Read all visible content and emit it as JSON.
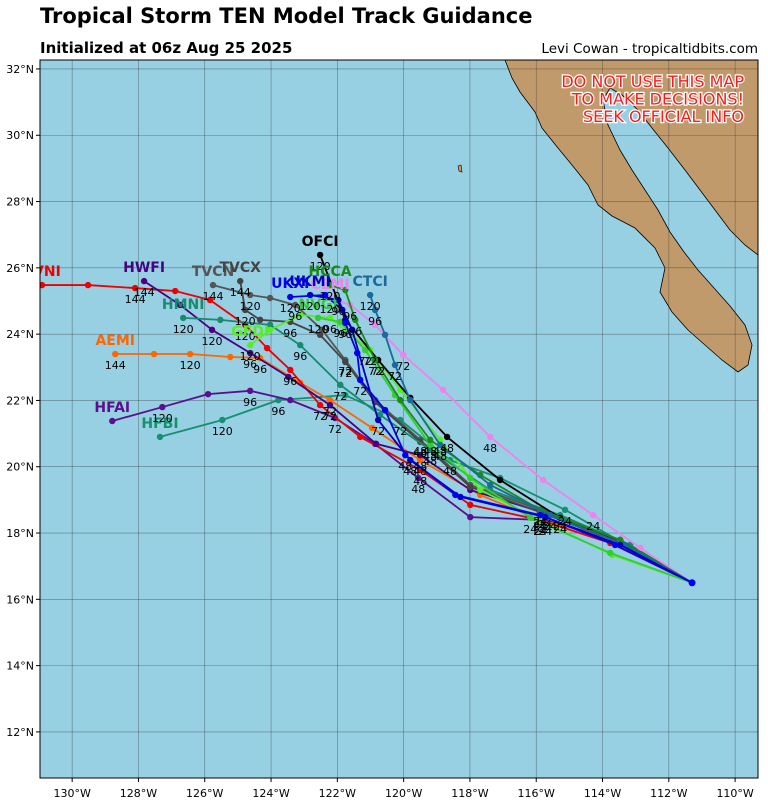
{
  "header": {
    "title": "Tropical Storm TEN Model Track Guidance",
    "subtitle": "Initialized at 06z Aug 25 2025",
    "credit": "Levi Cowan - tropicaltidbits.com"
  },
  "warning": [
    "DO NOT USE THIS MAP",
    "TO MAKE DECISIONS!",
    "SEEK OFFICIAL INFO"
  ],
  "map": {
    "xlim": [
      -130.97,
      -109.31
    ],
    "ylim": [
      10.61,
      32.27
    ],
    "grid": true,
    "xticks": [
      {
        "value": -130,
        "label": "130°W"
      },
      {
        "value": -128,
        "label": "128°W"
      },
      {
        "value": -126,
        "label": "126°W"
      },
      {
        "value": -124,
        "label": "124°W"
      },
      {
        "value": -122,
        "label": "122°W"
      },
      {
        "value": -120,
        "label": "120°W"
      },
      {
        "value": -118,
        "label": "118°W"
      },
      {
        "value": -116,
        "label": "116°W"
      },
      {
        "value": -114,
        "label": "114°W"
      },
      {
        "value": -112,
        "label": "112°W"
      },
      {
        "value": -110,
        "label": "110°W"
      }
    ],
    "yticks": [
      {
        "value": 12,
        "label": "12°N"
      },
      {
        "value": 14,
        "label": "14°N"
      },
      {
        "value": 16,
        "label": "16°N"
      },
      {
        "value": 18,
        "label": "18°N"
      },
      {
        "value": 20,
        "label": "20°N"
      },
      {
        "value": 22,
        "label": "22°N"
      },
      {
        "value": 24,
        "label": "24°N"
      },
      {
        "value": 26,
        "label": "26°N"
      },
      {
        "value": 28,
        "label": "28°N"
      },
      {
        "value": 30,
        "label": "30°N"
      },
      {
        "value": 32,
        "label": "32°N"
      }
    ],
    "tracks": [
      {
        "name": "HFBI",
        "color": "#159070",
        "lon": [
          -111.3,
          -115.13,
          -117.09,
          -118.6,
          -120.1,
          -121.76,
          -123.78,
          -125.47,
          -127.35
        ],
        "lat": [
          16.5,
          18.7,
          19.66,
          20.2,
          21.41,
          22.16,
          22.01,
          21.41,
          20.9
        ],
        "hours": [
          null,
          24,
          null,
          48,
          72,
          null,
          96,
          120,
          null
        ]
      },
      {
        "name": "HFAI",
        "color": "#5b0f8f",
        "lon": [
          -111.3,
          -113.47,
          -115.73,
          -117.99,
          -119.56,
          -120.86,
          -122.07,
          -123.42,
          -124.63,
          -125.9,
          -127.28,
          -128.79
        ],
        "lat": [
          16.5,
          17.76,
          18.39,
          18.48,
          19.66,
          20.69,
          21.47,
          22.01,
          22.29,
          22.19,
          21.8,
          21.38
        ],
        "hours": [
          null,
          null,
          24,
          null,
          48,
          null,
          72,
          null,
          96,
          null,
          120,
          null
        ]
      },
      {
        "name": "AEMI",
        "color": "#ff6600",
        "lon": [
          -111.3,
          -113.47,
          -115.88,
          -117.69,
          -119.5,
          -120.95,
          -122.22,
          -123.12,
          -124.33,
          -125.23,
          -126.44,
          -127.53,
          -128.7
        ],
        "lat": [
          16.5,
          17.79,
          18.39,
          19.15,
          20.2,
          21.17,
          22.01,
          22.53,
          23.28,
          23.31,
          23.4,
          23.4,
          23.4
        ],
        "hours": [
          null,
          null,
          24,
          null,
          48,
          null,
          72,
          null,
          96,
          null,
          120,
          null,
          144
        ]
      },
      {
        "name": "AVNI",
        "color": "#ee0000",
        "lon": [
          -111.3,
          -113.77,
          -115.88,
          -117.99,
          -119.5,
          -121.31,
          -122.52,
          -123.42,
          -124.12,
          -124.78,
          -125.84,
          -126.89,
          -128.1,
          -129.52,
          -130.91
        ],
        "lat": [
          16.5,
          17.7,
          18.39,
          18.85,
          19.9,
          20.9,
          21.86,
          22.92,
          23.58,
          24.28,
          25.03,
          25.3,
          25.39,
          25.48,
          25.48
        ],
        "hours": [
          null,
          null,
          24,
          null,
          48,
          null,
          72,
          96,
          null,
          120,
          null,
          null,
          144,
          null,
          null
        ]
      },
      {
        "name": "HWFI",
        "color": "#4b0082",
        "lon": [
          -111.3,
          -113.47,
          -115.73,
          -117.99,
          -119.5,
          -120.83,
          -122.22,
          -123.48,
          -124.63,
          -125.78,
          -126.74,
          -127.83
        ],
        "lat": [
          16.5,
          17.76,
          18.6,
          19.3,
          20.35,
          20.69,
          21.86,
          22.71,
          23.43,
          24.13,
          24.88,
          25.6
        ],
        "hours": [
          null,
          null,
          24,
          null,
          48,
          null,
          72,
          null,
          96,
          120,
          null,
          144
        ]
      },
      {
        "name": "TVCN",
        "color": "#555555",
        "lon": [
          -111.3,
          -113.47,
          -115.88,
          -117.99,
          -119.5,
          -120.86,
          -121.76,
          -122.46,
          -123.27,
          -124.03,
          -124.63,
          -125.75
        ],
        "lat": [
          16.5,
          17.7,
          18.7,
          19.45,
          20.81,
          22.01,
          23.22,
          24.13,
          24.88,
          25.09,
          25.18,
          25.48
        ],
        "hours": [
          null,
          null,
          24,
          null,
          48,
          null,
          72,
          null,
          96,
          null,
          120,
          144
        ]
      },
      {
        "name": "TVCX",
        "color": "#444444",
        "lon": [
          -111.3,
          -113.47,
          -115.88,
          -117.99,
          -119.5,
          -120.86,
          -121.76,
          -122.52,
          -123.42,
          -124.33,
          -124.78,
          -124.93
        ],
        "lat": [
          16.5,
          17.7,
          18.63,
          19.39,
          20.75,
          21.95,
          23.16,
          23.98,
          24.37,
          24.43,
          24.73,
          25.6
        ],
        "hours": [
          null,
          null,
          24,
          null,
          48,
          null,
          72,
          null,
          96,
          null,
          120,
          144
        ]
      },
      {
        "name": "HMNI",
        "color": "#188a6e",
        "lon": [
          -111.3,
          -113.17,
          -115.28,
          -117.39,
          -119.2,
          -120.71,
          -121.91,
          -123.12,
          -124.03,
          -125.53,
          -126.65
        ],
        "lat": [
          16.5,
          17.64,
          18.54,
          19.3,
          20.51,
          21.56,
          22.47,
          23.67,
          24.28,
          24.43,
          24.49
        ],
        "hours": [
          null,
          null,
          24,
          null,
          48,
          null,
          72,
          96,
          null,
          null,
          120
        ]
      },
      {
        "name": "GFDI",
        "color": "#55ee22",
        "lon": [
          -111.3,
          -113.71,
          -115.88,
          -117.69,
          -118.9,
          -120.1,
          -121.01,
          -122.22,
          -123.12,
          -124.03,
          -124.63
        ],
        "lat": [
          16.5,
          17.34,
          18.39,
          19.3,
          20.81,
          22.32,
          23.52,
          24.49,
          24.58,
          24.13,
          23.67
        ],
        "hours": [
          null,
          null,
          24,
          null,
          48,
          null,
          72,
          96,
          null,
          null,
          120
        ]
      },
      {
        "name": "NVGI",
        "color": "#33cc33",
        "lon": [
          -111.3,
          -113.77,
          -116.18,
          -117.99,
          -119.2,
          -120.26,
          -121.16,
          -121.91,
          -122.58
        ],
        "lat": [
          16.5,
          17.4,
          18.46,
          19.66,
          20.66,
          22.16,
          23.52,
          24.37,
          24.49
        ],
        "hours": [
          null,
          null,
          24,
          null,
          48,
          null,
          72,
          96,
          120
        ]
      },
      {
        "name": "CEMI",
        "color": "#ee82ee",
        "lon": [
          -111.3,
          -112.86,
          -114.28,
          -115.79,
          -117.39,
          -118.81,
          -120.01,
          -120.86,
          -121.61,
          -122.22
        ],
        "lat": [
          16.5,
          17.55,
          18.54,
          19.6,
          20.9,
          22.32,
          23.37,
          24.28,
          24.88,
          25.09
        ],
        "hours": [
          null,
          null,
          24,
          null,
          48,
          null,
          72,
          null,
          96,
          120
        ]
      },
      {
        "name": "OFCI",
        "color": "#000000",
        "lon": [
          -111.3,
          -113.47,
          -115.28,
          -117.09,
          -118.69,
          -119.8,
          -120.77,
          -121.76,
          -122.52
        ],
        "lat": [
          16.5,
          17.79,
          18.46,
          19.6,
          20.9,
          22.08,
          23.22,
          24.43,
          26.39
        ],
        "hours": [
          null,
          null,
          24,
          null,
          48,
          null,
          72,
          null,
          120
        ]
      },
      {
        "name": "HCCA",
        "color": "#1a8a1a",
        "lon": [
          -111.3,
          -113.47,
          -115.88,
          -117.69,
          -119.2,
          -120.1,
          -120.86,
          -121.46,
          -121.76,
          -122.22
        ],
        "lat": [
          16.5,
          17.79,
          18.7,
          19.75,
          20.81,
          22.01,
          23.22,
          24.43,
          25.33,
          25.48
        ],
        "hours": [
          null,
          null,
          24,
          null,
          48,
          null,
          72,
          96,
          null,
          120
        ]
      },
      {
        "name": "CTCI",
        "color": "#1a6b99",
        "lon": [
          -111.3,
          -113.32,
          -115.58,
          -117.39,
          -118.9,
          -119.8,
          -120.26,
          -120.56,
          -120.86,
          -121.01
        ],
        "lat": [
          16.5,
          17.64,
          18.54,
          19.45,
          20.66,
          22.01,
          23.07,
          23.98,
          24.73,
          25.18
        ],
        "hours": [
          null,
          null,
          24,
          null,
          48,
          null,
          72,
          null,
          96,
          120
        ]
      },
      {
        "name": "UKMI",
        "color": "#0000bb",
        "lon": [
          -111.3,
          -113.47,
          -115.73,
          -118.29,
          -119.8,
          -120.77,
          -121.55,
          -121.97,
          -122.82
        ],
        "lat": [
          16.5,
          17.64,
          18.48,
          19.09,
          20.2,
          21.41,
          24.13,
          25.03,
          25.18
        ],
        "hours": [
          null,
          null,
          24,
          null,
          48,
          72,
          null,
          96,
          120
        ]
      },
      {
        "name": "UKXI",
        "color": "#0000ee",
        "lon": [
          -111.3,
          -113.62,
          -115.88,
          -118.44,
          -119.95,
          -120.56,
          -121.31,
          -121.4,
          -121.76,
          -121.85,
          -122.37,
          -123.42
        ],
        "lat": [
          16.5,
          17.64,
          18.54,
          19.15,
          20.35,
          21.71,
          22.62,
          23.43,
          24.34,
          24.73,
          25.18,
          25.12
        ],
        "hours": [
          null,
          null,
          24,
          null,
          48,
          null,
          72,
          null,
          96,
          null,
          null,
          120
        ]
      }
    ]
  }
}
